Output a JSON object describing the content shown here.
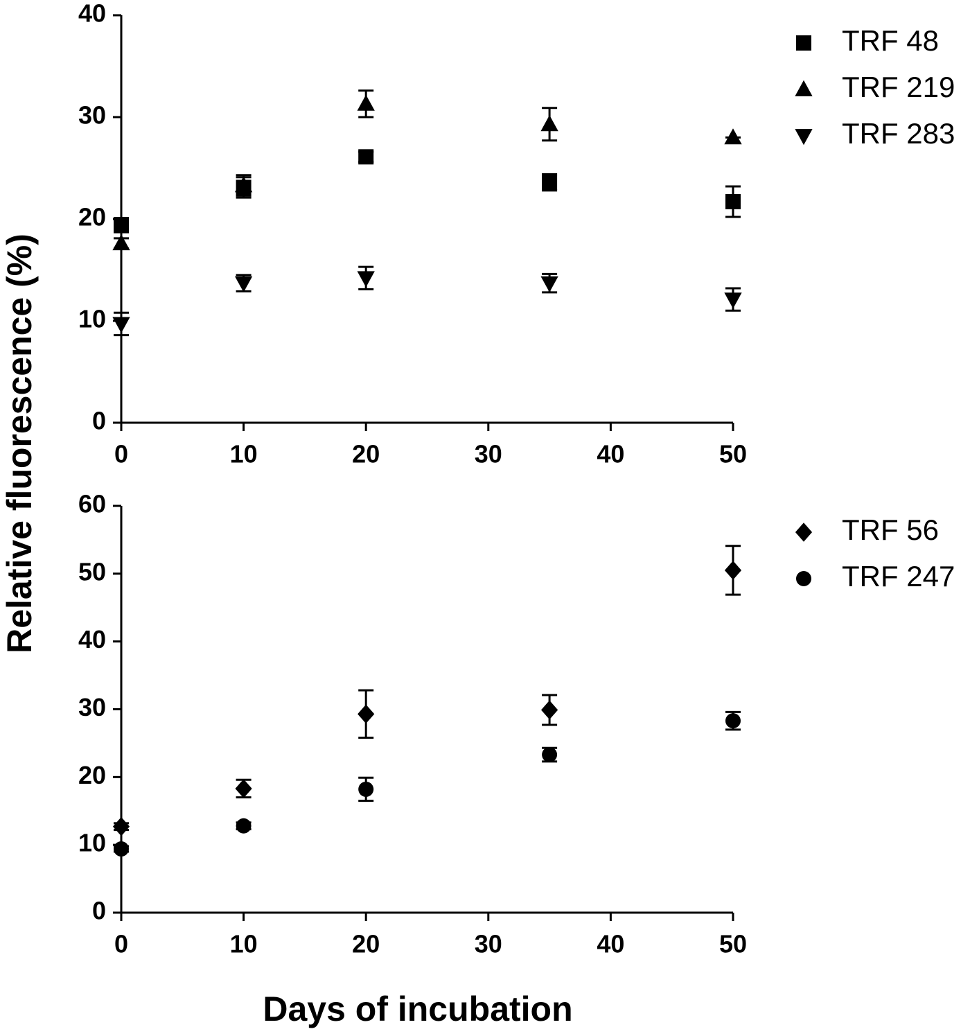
{
  "ylabel": "Relative fluorescence (%)",
  "xlabel": "Days of incubation",
  "chart_data": [
    {
      "type": "scatter",
      "xlim": [
        0,
        50
      ],
      "xticks": [
        0,
        10,
        20,
        30,
        40,
        50
      ],
      "ylim": [
        0,
        40
      ],
      "yticks": [
        0,
        10,
        20,
        30,
        40
      ],
      "legend": "outside-right",
      "series": [
        {
          "name": "TRF 48",
          "marker": "square",
          "color": "#000000",
          "x": [
            0,
            10,
            20,
            35,
            50
          ],
          "values": [
            19.4,
            23.1,
            26.1,
            23.6,
            21.7
          ],
          "errors": [
            0.7,
            1.0,
            0.5,
            0.8,
            1.5
          ]
        },
        {
          "name": "TRF 219",
          "marker": "triangle-up",
          "color": "#000000",
          "x": [
            0,
            10,
            20,
            35,
            50
          ],
          "values": [
            17.6,
            23.3,
            31.3,
            29.3,
            28.0
          ],
          "errors": [
            0.5,
            1.0,
            1.3,
            1.6,
            0
          ]
        },
        {
          "name": "TRF 283",
          "marker": "triangle-down",
          "color": "#000000",
          "x": [
            0,
            10,
            20,
            35,
            50
          ],
          "values": [
            9.7,
            13.7,
            14.2,
            13.7,
            12.1
          ],
          "errors": [
            1.1,
            0.8,
            1.1,
            0.9,
            1.1
          ]
        }
      ]
    },
    {
      "type": "scatter",
      "xlim": [
        0,
        50
      ],
      "xticks": [
        0,
        10,
        20,
        30,
        40,
        50
      ],
      "ylim": [
        0,
        60
      ],
      "yticks": [
        0,
        10,
        20,
        30,
        40,
        50,
        60
      ],
      "legend": "outside-right",
      "series": [
        {
          "name": "TRF 56",
          "marker": "diamond",
          "color": "#000000",
          "x": [
            0,
            10,
            20,
            35,
            50
          ],
          "values": [
            12.7,
            18.3,
            29.3,
            29.9,
            50.5
          ],
          "errors": [
            0.5,
            1.3,
            3.5,
            2.2,
            3.6
          ]
        },
        {
          "name": "TRF 247",
          "marker": "circle",
          "color": "#000000",
          "x": [
            0,
            10,
            20,
            35,
            50
          ],
          "values": [
            9.4,
            12.8,
            18.2,
            23.3,
            28.3
          ],
          "errors": [
            0.4,
            0.5,
            1.7,
            1.0,
            1.3
          ]
        }
      ]
    }
  ]
}
